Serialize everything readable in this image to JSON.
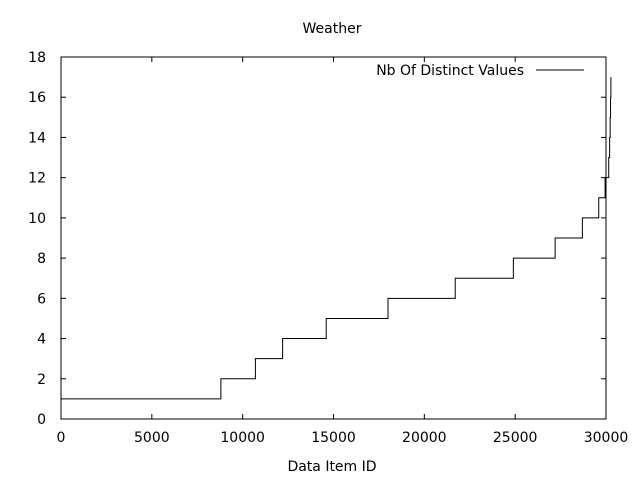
{
  "chart_data": {
    "type": "line",
    "title": "Weather",
    "xlabel": "Data Item ID",
    "ylabel": "",
    "xlim": [
      0,
      30000
    ],
    "ylim": [
      0,
      18
    ],
    "xticks": [
      0,
      5000,
      10000,
      15000,
      20000,
      25000,
      30000
    ],
    "yticks": [
      0,
      2,
      4,
      6,
      8,
      10,
      12,
      14,
      16,
      18
    ],
    "grid": false,
    "legend_position": "top-right",
    "step": true,
    "series": [
      {
        "name": "Nb Of Distinct Values",
        "color": "#000000",
        "points": [
          [
            0,
            1
          ],
          [
            8800,
            1
          ],
          [
            8800,
            2
          ],
          [
            10700,
            2
          ],
          [
            10700,
            3
          ],
          [
            12200,
            3
          ],
          [
            12200,
            4
          ],
          [
            14600,
            4
          ],
          [
            14600,
            5
          ],
          [
            18000,
            5
          ],
          [
            18000,
            6
          ],
          [
            21700,
            6
          ],
          [
            21700,
            7
          ],
          [
            24900,
            7
          ],
          [
            24900,
            8
          ],
          [
            27200,
            8
          ],
          [
            27200,
            9
          ],
          [
            28700,
            9
          ],
          [
            28700,
            10
          ],
          [
            29600,
            10
          ],
          [
            29600,
            11
          ],
          [
            29950,
            11
          ],
          [
            29950,
            12
          ],
          [
            30150,
            12
          ],
          [
            30150,
            13
          ],
          [
            30200,
            13
          ],
          [
            30200,
            14
          ],
          [
            30230,
            14
          ],
          [
            30230,
            15
          ],
          [
            30250,
            15
          ],
          [
            30250,
            16
          ],
          [
            30270,
            16
          ],
          [
            30270,
            17
          ]
        ]
      }
    ]
  }
}
